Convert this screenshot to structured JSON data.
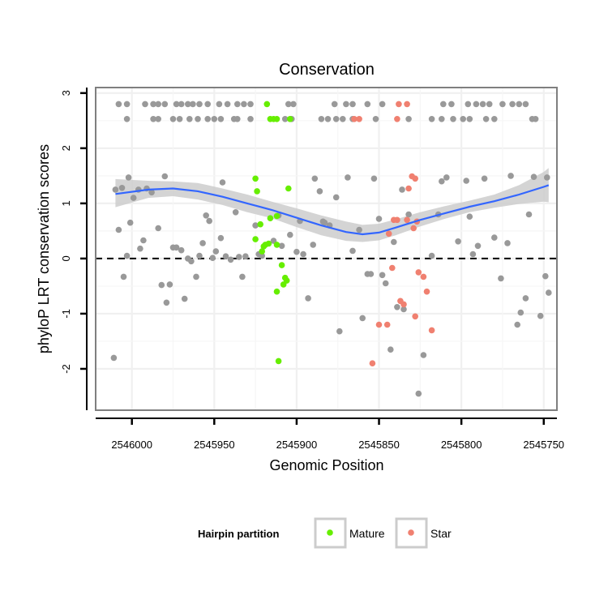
{
  "chart_data": {
    "type": "scatter",
    "title": "Conservation",
    "xlabel": "Genomic Position",
    "ylabel": "phyloP LRT conservation scores",
    "x_reversed": true,
    "xlim": [
      2546022,
      2545742
    ],
    "ylim": [
      -2.75,
      3.1
    ],
    "x_ticks": [
      2546000,
      2545950,
      2545900,
      2545850,
      2545800,
      2545750
    ],
    "x_tick_labels": [
      "2546000",
      "2545950",
      "2545900",
      "2545850",
      "2545800",
      "2545750"
    ],
    "y_ticks": [
      -2,
      -1,
      0,
      1,
      2,
      3
    ],
    "y_tick_labels": [
      "-2",
      "-1",
      "0",
      "1",
      "2",
      "3"
    ],
    "grid": true,
    "reference_line": {
      "y": 0,
      "style": "dashed"
    },
    "legend": {
      "title": "Hairpin partition",
      "position": "bottom",
      "entries": [
        {
          "label": "Mature",
          "color": "#66ee00"
        },
        {
          "label": "Star",
          "color": "#f08070"
        }
      ]
    },
    "colors": {
      "other": "#999999",
      "Mature": "#66ee00",
      "Star": "#f08070",
      "smooth": "#3366ff",
      "band": "#d0d0d0"
    },
    "series": [
      {
        "name": "Other",
        "points": [
          [
            2546008,
            2.8
          ],
          [
            2546003,
            2.8
          ],
          [
            2545992,
            2.8
          ],
          [
            2545987,
            2.8
          ],
          [
            2545984,
            2.8
          ],
          [
            2545980,
            2.8
          ],
          [
            2545973,
            2.8
          ],
          [
            2545970,
            2.8
          ],
          [
            2545966,
            2.8
          ],
          [
            2545963,
            2.8
          ],
          [
            2545959,
            2.8
          ],
          [
            2545954,
            2.8
          ],
          [
            2545947,
            2.8
          ],
          [
            2545942,
            2.8
          ],
          [
            2545936,
            2.8
          ],
          [
            2545932,
            2.8
          ],
          [
            2545928,
            2.8
          ],
          [
            2545905,
            2.8
          ],
          [
            2545902,
            2.8
          ],
          [
            2545877,
            2.8
          ],
          [
            2545870,
            2.8
          ],
          [
            2545866,
            2.8
          ],
          [
            2545857,
            2.8
          ],
          [
            2545848,
            2.8
          ],
          [
            2545811,
            2.8
          ],
          [
            2545806,
            2.8
          ],
          [
            2545796,
            2.8
          ],
          [
            2545791,
            2.8
          ],
          [
            2545787,
            2.8
          ],
          [
            2545783,
            2.8
          ],
          [
            2545775,
            2.8
          ],
          [
            2545769,
            2.8
          ],
          [
            2545765,
            2.8
          ],
          [
            2545761,
            2.8
          ],
          [
            2546003,
            2.53
          ],
          [
            2545987,
            2.53
          ],
          [
            2545984,
            2.53
          ],
          [
            2545975,
            2.53
          ],
          [
            2545971,
            2.53
          ],
          [
            2545965,
            2.53
          ],
          [
            2545960,
            2.53
          ],
          [
            2545954,
            2.53
          ],
          [
            2545950,
            2.53
          ],
          [
            2545946,
            2.53
          ],
          [
            2545938,
            2.53
          ],
          [
            2545936,
            2.53
          ],
          [
            2545928,
            2.53
          ],
          [
            2545907,
            2.53
          ],
          [
            2545903,
            2.53
          ],
          [
            2545885,
            2.53
          ],
          [
            2545881,
            2.53
          ],
          [
            2545876,
            2.53
          ],
          [
            2545872,
            2.53
          ],
          [
            2545866,
            2.53
          ],
          [
            2545852,
            2.53
          ],
          [
            2545832,
            2.53
          ],
          [
            2545818,
            2.53
          ],
          [
            2545812,
            2.53
          ],
          [
            2545805,
            2.53
          ],
          [
            2545799,
            2.53
          ],
          [
            2545795,
            2.53
          ],
          [
            2545785,
            2.53
          ],
          [
            2545780,
            2.53
          ],
          [
            2545757,
            2.53
          ],
          [
            2545755,
            2.53
          ],
          [
            2546011,
            -1.8
          ],
          [
            2546010,
            1.25
          ],
          [
            2546008,
            0.52
          ],
          [
            2546006,
            1.28
          ],
          [
            2546005,
            -0.33
          ],
          [
            2546003,
            0.05
          ],
          [
            2546002,
            1.47
          ],
          [
            2546001,
            0.65
          ],
          [
            2545999,
            1.1
          ],
          [
            2545996,
            1.25
          ],
          [
            2545995,
            0.18
          ],
          [
            2545993,
            0.33
          ],
          [
            2545991,
            1.27
          ],
          [
            2545988,
            1.2
          ],
          [
            2545984,
            0.55
          ],
          [
            2545982,
            -0.48
          ],
          [
            2545980,
            1.49
          ],
          [
            2545979,
            -0.8
          ],
          [
            2545977,
            -0.47
          ],
          [
            2545975,
            0.2
          ],
          [
            2545973,
            0.2
          ],
          [
            2545970,
            0.15
          ],
          [
            2545968,
            -0.73
          ],
          [
            2545966,
            0
          ],
          [
            2545964,
            -0.05
          ],
          [
            2545961,
            -0.33
          ],
          [
            2545959,
            0.05
          ],
          [
            2545957,
            0.28
          ],
          [
            2545955,
            0.78
          ],
          [
            2545953,
            0.68
          ],
          [
            2545951,
            0.01
          ],
          [
            2545949,
            0.13
          ],
          [
            2545946,
            0.37
          ],
          [
            2545945,
            1.38
          ],
          [
            2545943,
            0.04
          ],
          [
            2545940,
            -0.02
          ],
          [
            2545937,
            0.84
          ],
          [
            2545935,
            0.03
          ],
          [
            2545933,
            -0.33
          ],
          [
            2545931,
            0.04
          ],
          [
            2545925,
            0.6
          ],
          [
            2545923,
            0.08
          ],
          [
            2545921,
            0.05
          ],
          [
            2545914,
            0.32
          ],
          [
            2545911,
            0.78
          ],
          [
            2545909,
            0.23
          ],
          [
            2545904,
            0.43
          ],
          [
            2545900,
            0.12
          ],
          [
            2545898,
            0.68
          ],
          [
            2545896,
            0.08
          ],
          [
            2545893,
            -0.72
          ],
          [
            2545890,
            0.25
          ],
          [
            2545889,
            1.45
          ],
          [
            2545886,
            1.22
          ],
          [
            2545884,
            0.67
          ],
          [
            2545883,
            0.65
          ],
          [
            2545880,
            0.6
          ],
          [
            2545876,
            1.11
          ],
          [
            2545874,
            -1.32
          ],
          [
            2545869,
            1.47
          ],
          [
            2545866,
            0.14
          ],
          [
            2545862,
            0.52
          ],
          [
            2545860,
            -1.08
          ],
          [
            2545857,
            -0.28
          ],
          [
            2545855,
            -0.28
          ],
          [
            2545853,
            1.45
          ],
          [
            2545850,
            0.72
          ],
          [
            2545848,
            -0.3
          ],
          [
            2545846,
            -0.45
          ],
          [
            2545843,
            -1.65
          ],
          [
            2545841,
            0.3
          ],
          [
            2545839,
            -0.88
          ],
          [
            2545836,
            1.25
          ],
          [
            2545835,
            -0.92
          ],
          [
            2545832,
            0.8
          ],
          [
            2545826,
            -2.45
          ],
          [
            2545823,
            -1.75
          ],
          [
            2545818,
            0.05
          ],
          [
            2545814,
            0.8
          ],
          [
            2545812,
            1.4
          ],
          [
            2545809,
            1.47
          ],
          [
            2545802,
            0.31
          ],
          [
            2545797,
            1.41
          ],
          [
            2545795,
            0.76
          ],
          [
            2545793,
            0.08
          ],
          [
            2545790,
            0.23
          ],
          [
            2545786,
            1.45
          ],
          [
            2545780,
            0.38
          ],
          [
            2545776,
            -0.36
          ],
          [
            2545772,
            0.28
          ],
          [
            2545770,
            1.5
          ],
          [
            2545766,
            -1.2
          ],
          [
            2545764,
            -0.98
          ],
          [
            2545761,
            -0.72
          ],
          [
            2545759,
            0.8
          ],
          [
            2545756,
            1.48
          ],
          [
            2545752,
            -1.04
          ],
          [
            2545749,
            -0.32
          ],
          [
            2545748,
            1.47
          ],
          [
            2545747,
            -0.62
          ]
        ]
      },
      {
        "name": "Mature",
        "points": [
          [
            2545918,
            2.8
          ],
          [
            2545914,
            2.53
          ],
          [
            2545916,
            2.53
          ],
          [
            2545912,
            2.53
          ],
          [
            2545904,
            2.53
          ],
          [
            2545925,
            1.45
          ],
          [
            2545924,
            1.22
          ],
          [
            2545916,
            0.73
          ],
          [
            2545912,
            0.77
          ],
          [
            2545922,
            0.62
          ],
          [
            2545925,
            0.35
          ],
          [
            2545921,
            0.13
          ],
          [
            2545920,
            0.22
          ],
          [
            2545919,
            0.25
          ],
          [
            2545917,
            0.27
          ],
          [
            2545912,
            0.25
          ],
          [
            2545905,
            1.27
          ],
          [
            2545909,
            -0.12
          ],
          [
            2545907,
            -0.35
          ],
          [
            2545908,
            -0.47
          ],
          [
            2545906,
            -0.4
          ],
          [
            2545912,
            -0.6
          ],
          [
            2545911,
            -1.86
          ]
        ]
      },
      {
        "name": "Star",
        "points": [
          [
            2545862,
            2.53
          ],
          [
            2545865,
            2.53
          ],
          [
            2545839,
            2.53
          ],
          [
            2545838,
            2.8
          ],
          [
            2545833,
            2.8
          ],
          [
            2545830,
            1.49
          ],
          [
            2545828,
            1.45
          ],
          [
            2545832,
            1.27
          ],
          [
            2545841,
            0.7
          ],
          [
            2545839,
            0.7
          ],
          [
            2545833,
            0.7
          ],
          [
            2545827,
            0.67
          ],
          [
            2545829,
            0.55
          ],
          [
            2545844,
            0.45
          ],
          [
            2545842,
            -0.17
          ],
          [
            2545826,
            -0.25
          ],
          [
            2545823,
            -0.33
          ],
          [
            2545821,
            -0.6
          ],
          [
            2545837,
            -0.77
          ],
          [
            2545835,
            -0.83
          ],
          [
            2545828,
            -1.05
          ],
          [
            2545818,
            -1.3
          ],
          [
            2545845,
            -1.2
          ],
          [
            2545850,
            -1.2
          ],
          [
            2545854,
            -1.9
          ]
        ]
      }
    ],
    "smooth": {
      "x": [
        2546010,
        2545990,
        2545975,
        2545960,
        2545945,
        2545930,
        2545915,
        2545900,
        2545885,
        2545870,
        2545860,
        2545850,
        2545840,
        2545825,
        2545810,
        2545795,
        2545780,
        2545765,
        2545750,
        2545747
      ],
      "y": [
        1.17,
        1.25,
        1.27,
        1.22,
        1.12,
        1.0,
        0.88,
        0.74,
        0.6,
        0.48,
        0.44,
        0.47,
        0.56,
        0.7,
        0.82,
        0.94,
        1.04,
        1.16,
        1.3,
        1.33
      ],
      "lower": [
        0.93,
        1.1,
        1.13,
        1.07,
        0.97,
        0.84,
        0.73,
        0.57,
        0.42,
        0.32,
        0.3,
        0.33,
        0.42,
        0.58,
        0.72,
        0.84,
        0.92,
        0.99,
        1.03,
        1.02
      ],
      "upper": [
        1.44,
        1.41,
        1.4,
        1.37,
        1.27,
        1.16,
        1.03,
        0.91,
        0.78,
        0.67,
        0.61,
        0.63,
        0.71,
        0.84,
        0.95,
        1.05,
        1.16,
        1.33,
        1.57,
        1.64
      ]
    }
  }
}
